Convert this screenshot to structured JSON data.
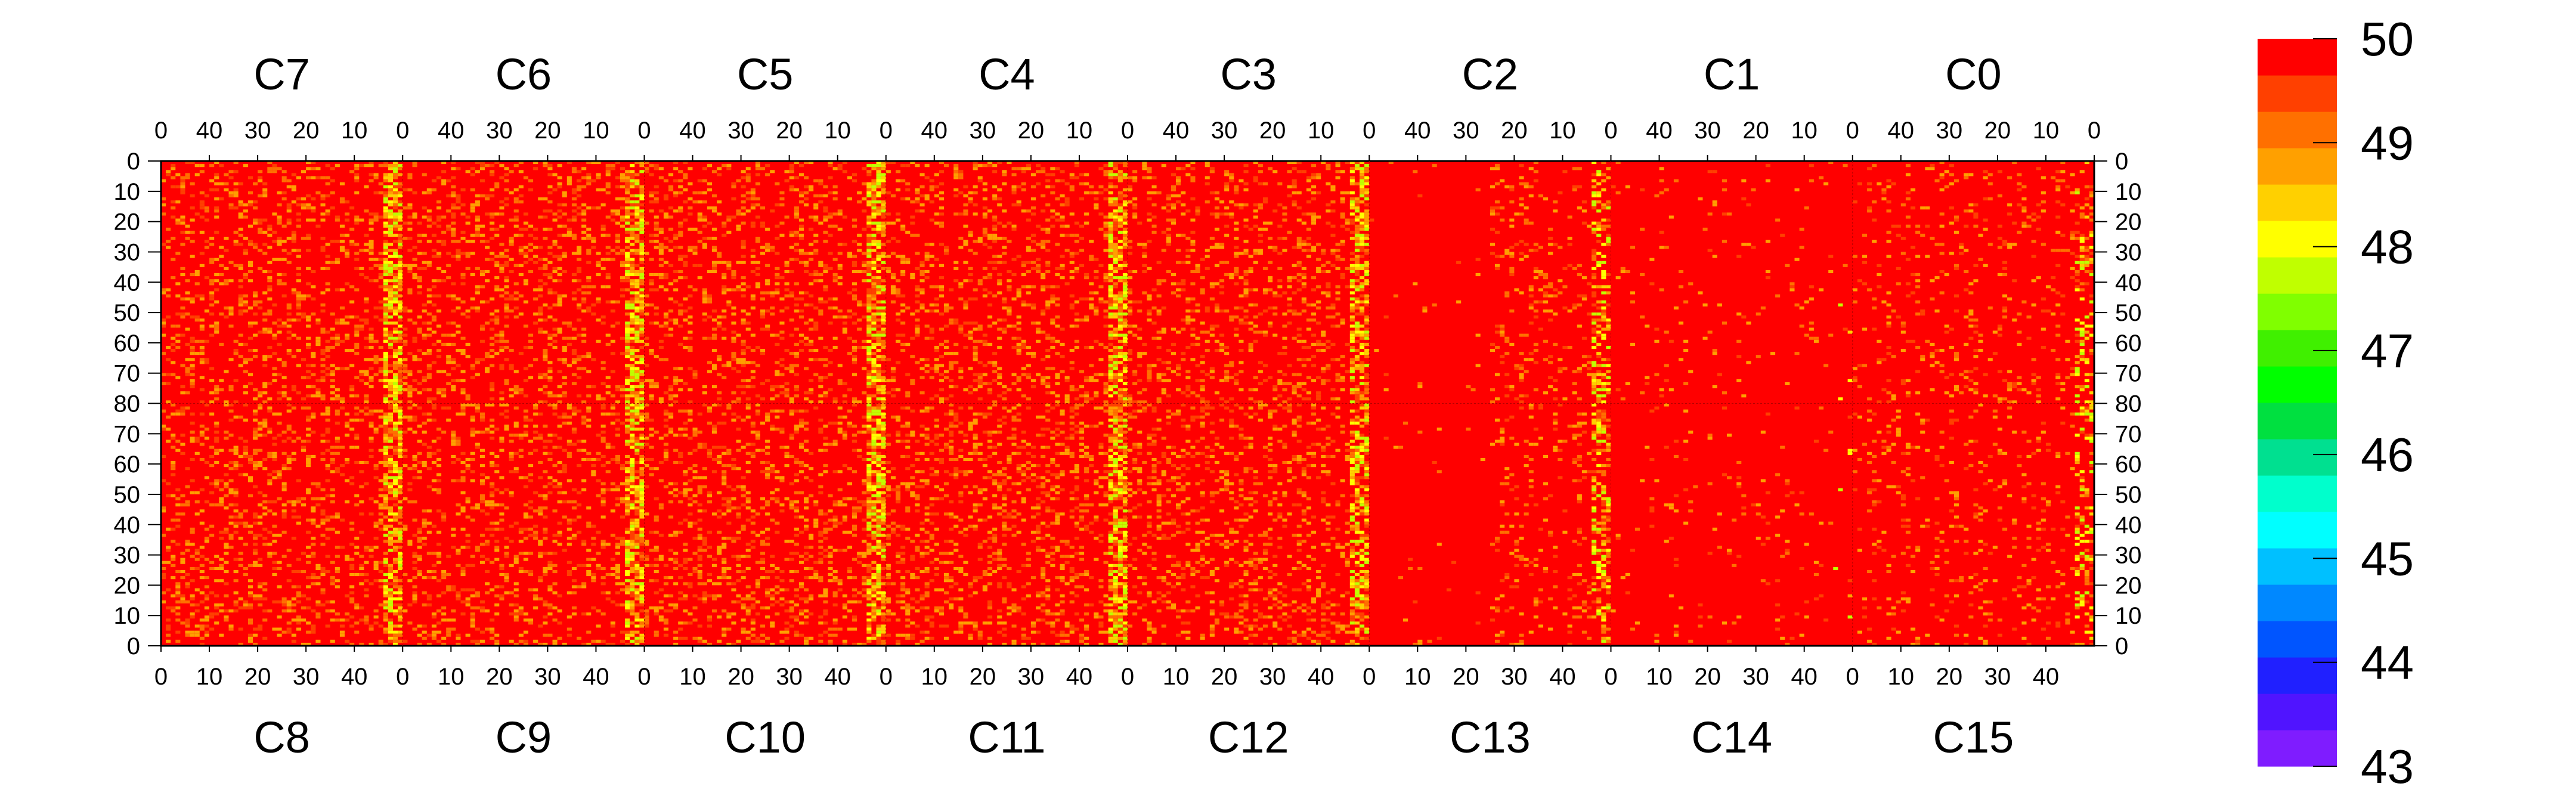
{
  "chart_data": {
    "type": "heatmap",
    "title": "",
    "xlabel": "",
    "ylabel": "",
    "top_panels": [
      "C7",
      "C6",
      "C5",
      "C4",
      "C3",
      "C2",
      "C1",
      "C0"
    ],
    "bottom_panels": [
      "C8",
      "C9",
      "C10",
      "C11",
      "C12",
      "C13",
      "C14",
      "C15"
    ],
    "top_x_ticks": [
      "40",
      "30",
      "20",
      "10",
      "0"
    ],
    "bottom_x_ticks": [
      "0",
      "10",
      "20",
      "30",
      "40"
    ],
    "top_x_end_tick": "0",
    "x_range_per_panel": [
      0,
      50
    ],
    "y_ticks_top_half": [
      "0",
      "10",
      "20",
      "30",
      "40",
      "50",
      "60",
      "70",
      "80"
    ],
    "y_ticks_bottom_half": [
      "70",
      "60",
      "50",
      "40",
      "30",
      "20",
      "10",
      "0"
    ],
    "y_range_per_half": [
      0,
      80
    ],
    "colorbar": {
      "min": 43,
      "max": 50,
      "labels": [
        "50",
        "49",
        "48",
        "47",
        "46",
        "45",
        "44",
        "43"
      ],
      "colors": [
        "#7f1cff",
        "#5014ff",
        "#2020ff",
        "#0055ff",
        "#0088ff",
        "#00c0ff",
        "#00ffff",
        "#00ffcc",
        "#00e090",
        "#00e040",
        "#00ff00",
        "#40f000",
        "#80ff00",
        "#c0ff00",
        "#ffff00",
        "#ffd000",
        "#ffa000",
        "#ff7000",
        "#ff4000",
        "#ff0000"
      ]
    },
    "base_value": 50,
    "description_of_values": "Most cells are at the maximum (50, red); scattered cells in the 48-49 range (orange/yellow), denser near each panel's 0 column boundary; panels C13, C14 and C2/C1 are nearly uniformly 50."
  }
}
